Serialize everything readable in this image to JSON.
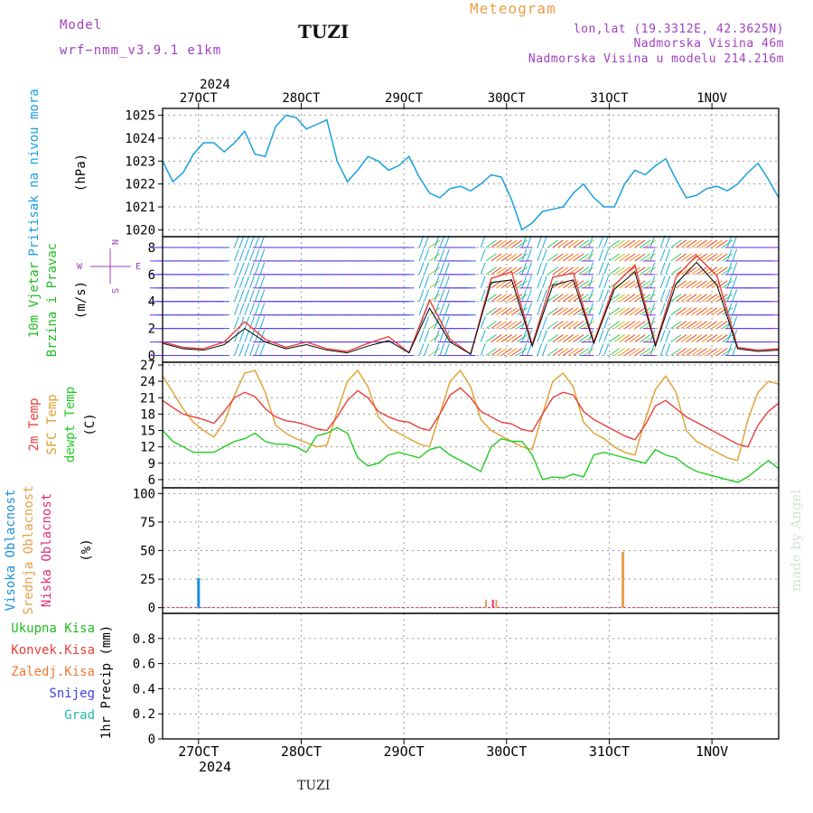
{
  "header": {
    "model_label": "Model",
    "model_name": "wrf−nmm_v3.9.1  e1km",
    "station": "TUZI",
    "title": "Meteogram",
    "lonlat": "lon,lat (19.3312E, 42.3625N)",
    "altitude": "Nadmorska Visina 46m",
    "model_altitude": "Nadmorska Visina u modelu 214.216m",
    "credit": "made by Angel",
    "footer_station": "TUZI"
  },
  "colors": {
    "pressure": "#1aa0e0",
    "temp2m": "#e8403a",
    "sfc_temp": "#e0a030",
    "dewpt": "#22cc22",
    "purple": "#a040c0",
    "orange": "#e8a04a",
    "blue": "#1a90e0",
    "green": "#22bb22",
    "red": "#e8403a"
  },
  "chart_data": [
    {
      "type": "line",
      "panel": "pressure",
      "ylabel_lines": [
        "Pritisak na nivou mora"
      ],
      "unit": "(hPa)",
      "top_axis": {
        "year": "2024",
        "date_labels": [
          "27OCT",
          "28OCT",
          "29OCT",
          "30OCT",
          "31OCT",
          "1NOV"
        ]
      },
      "ylim": [
        1019.7,
        1025.3
      ],
      "yticks": [
        1020,
        1021,
        1022,
        1023,
        1024,
        1025
      ],
      "grid": true,
      "x_hours": [
        0,
        3,
        6,
        9,
        12,
        15,
        18,
        21,
        24,
        27,
        30,
        33,
        36,
        39,
        42,
        45,
        48,
        51,
        54,
        57,
        60,
        63,
        66,
        69,
        72,
        75,
        78,
        81,
        84,
        87,
        90,
        93,
        96,
        99,
        102,
        105,
        108,
        111,
        114,
        117,
        120,
        123,
        126,
        129,
        132,
        135,
        138,
        141,
        144,
        147,
        150,
        153,
        156,
        159,
        162,
        165,
        168,
        171,
        174,
        177,
        180
      ],
      "series": [
        {
          "values": [
            1023.0,
            1022.1,
            1022.5,
            1023.3,
            1023.8,
            1023.8,
            1023.4,
            1023.8,
            1024.3,
            1023.3,
            1023.2,
            1024.5,
            1025.0,
            1024.9,
            1024.4,
            1024.6,
            1024.8,
            1023.0,
            1022.1,
            1022.6,
            1023.2,
            1023.0,
            1022.6,
            1022.8,
            1023.2,
            1022.3,
            1021.6,
            1021.4,
            1021.8,
            1021.9,
            1021.7,
            1022.0,
            1022.4,
            1022.3,
            1021.3,
            1020.0,
            1020.3,
            1020.8,
            1020.9,
            1021.0,
            1021.6,
            1022.0,
            1021.4,
            1021.0,
            1021.0,
            1022.0,
            1022.6,
            1022.4,
            1022.8,
            1023.1,
            1022.2,
            1021.4,
            1021.5,
            1021.8,
            1021.9,
            1021.7,
            1022.0,
            1022.5,
            1022.9,
            1022.2,
            1021.4
          ]
        }
      ]
    },
    {
      "type": "line",
      "panel": "wind",
      "ylabel_lines": [
        "10m Vjetar",
        "Brzina i Pravac"
      ],
      "unit": "(m/s)",
      "compass": {
        "n": "N",
        "s": "S",
        "e": "E",
        "w": "W"
      },
      "ylim": [
        -0.5,
        8.8
      ],
      "yticks": [
        0,
        2,
        4,
        6,
        8
      ],
      "grid": true,
      "x_hours": [
        0,
        6,
        12,
        18,
        24,
        30,
        36,
        42,
        48,
        54,
        60,
        66,
        72,
        78,
        84,
        90,
        96,
        102,
        108,
        114,
        120,
        126,
        132,
        138,
        144,
        150,
        156,
        162,
        168,
        174,
        180
      ],
      "series": [
        {
          "values": [
            1.0,
            0.6,
            0.5,
            1.0,
            2.5,
            1.2,
            0.6,
            1.0,
            0.5,
            0.3,
            0.9,
            1.4,
            0.2,
            4.1,
            1.2,
            0.1,
            5.7,
            6.2,
            0.8,
            5.8,
            6.1,
            1.0,
            5.2,
            6.7,
            0.8,
            5.8,
            7.4,
            5.9,
            0.6,
            0.4,
            0.5
          ]
        },
        {
          "values": [
            0.9,
            0.5,
            0.4,
            0.8,
            2.0,
            1.0,
            0.5,
            0.8,
            0.4,
            0.2,
            0.7,
            1.1,
            0.2,
            3.5,
            1.0,
            0.1,
            5.4,
            5.6,
            0.7,
            5.2,
            5.6,
            0.9,
            4.9,
            6.2,
            0.7,
            5.3,
            6.9,
            5.2,
            0.5,
            0.3,
            0.4
          ]
        }
      ]
    },
    {
      "type": "line",
      "panel": "temperature",
      "ylabel_lines": [
        "2m Temp",
        "SFC Temp",
        "dewpt Temp"
      ],
      "unit": "(C)",
      "ylim": [
        4.5,
        27.5
      ],
      "yticks": [
        6,
        9,
        12,
        15,
        18,
        21,
        24,
        27
      ],
      "grid": true,
      "x_hours": [
        0,
        3,
        6,
        9,
        12,
        15,
        18,
        21,
        24,
        27,
        30,
        33,
        36,
        39,
        42,
        45,
        48,
        51,
        54,
        57,
        60,
        63,
        66,
        69,
        72,
        75,
        78,
        81,
        84,
        87,
        90,
        93,
        96,
        99,
        102,
        105,
        108,
        111,
        114,
        117,
        120,
        123,
        126,
        129,
        132,
        135,
        138,
        141,
        144,
        147,
        150,
        153,
        156,
        159,
        162,
        165,
        168,
        171,
        174,
        177,
        180
      ],
      "series": [
        {
          "name": "2m Temp",
          "values": [
            20.5,
            19.2,
            18.0,
            17.5,
            17.0,
            16.3,
            18.5,
            21.0,
            22.0,
            21.2,
            19.0,
            17.5,
            16.8,
            16.5,
            16.0,
            15.3,
            15.0,
            17.5,
            20.5,
            22.3,
            21.0,
            18.5,
            17.5,
            16.8,
            16.5,
            15.5,
            15.0,
            18.0,
            21.5,
            22.8,
            21.0,
            18.5,
            17.5,
            16.5,
            16.2,
            15.2,
            14.8,
            18.0,
            21.0,
            22.0,
            21.5,
            18.5,
            17.0,
            16.0,
            15.0,
            14.0,
            13.3,
            16.0,
            19.5,
            20.5,
            19.0,
            17.5,
            16.5,
            15.5,
            14.5,
            13.5,
            12.5,
            12.0,
            16.0,
            18.5,
            20.0
          ]
        },
        {
          "name": "SFC Temp",
          "values": [
            25.0,
            22.0,
            19.0,
            16.5,
            15.0,
            13.8,
            16.5,
            21.5,
            25.5,
            26.0,
            22.0,
            16.0,
            14.5,
            13.5,
            12.8,
            12.0,
            12.3,
            18.5,
            24.0,
            26.0,
            23.0,
            17.5,
            15.5,
            14.5,
            13.5,
            12.5,
            12.0,
            18.0,
            24.0,
            26.0,
            23.0,
            17.0,
            15.0,
            14.0,
            13.0,
            12.0,
            11.5,
            18.0,
            24.0,
            25.5,
            23.0,
            16.5,
            14.5,
            13.5,
            12.0,
            11.0,
            10.5,
            17.0,
            22.5,
            25.0,
            22.0,
            15.0,
            13.0,
            12.0,
            11.0,
            10.0,
            9.5,
            17.0,
            22.0,
            24.0,
            23.5
          ]
        },
        {
          "name": "dewpt Temp",
          "values": [
            15.0,
            13.0,
            12.0,
            11.0,
            11.0,
            11.0,
            12.0,
            13.0,
            13.5,
            14.5,
            13.0,
            12.5,
            12.5,
            12.0,
            11.0,
            14.0,
            14.5,
            15.5,
            14.5,
            10.0,
            8.5,
            9.0,
            10.5,
            11.0,
            10.5,
            10.0,
            11.5,
            12.0,
            10.5,
            9.5,
            8.5,
            7.5,
            12.0,
            13.5,
            13.0,
            13.0,
            10.5,
            6.0,
            6.5,
            6.3,
            7.0,
            6.5,
            10.5,
            11.0,
            10.5,
            10.0,
            9.5,
            9.0,
            11.5,
            10.5,
            10.0,
            8.5,
            7.5,
            7.0,
            6.5,
            6.0,
            5.5,
            6.5,
            8.0,
            9.5,
            8.0
          ]
        }
      ]
    },
    {
      "type": "bar",
      "panel": "clouds",
      "ylabel_lines": [
        "Visoka Oblacnost",
        "Srednja Oblacnost",
        "Niska Oblacnost"
      ],
      "unit": "(%)",
      "ylim": [
        -5,
        105
      ],
      "yticks": [
        0,
        25,
        50,
        75,
        100
      ],
      "grid": true,
      "bars": [
        {
          "series": "Visoka Oblacnost",
          "hour": 10.5,
          "value": 26
        },
        {
          "series": "Srednja Oblacnost",
          "hour": 94.5,
          "value": 7
        },
        {
          "series": "Niska Oblacnost",
          "hour": 96.5,
          "value": 7
        },
        {
          "series": "Srednja Oblacnost",
          "hour": 97.5,
          "value": 7
        },
        {
          "series": "Srednja Oblacnost",
          "hour": 134.5,
          "value": 49
        }
      ]
    },
    {
      "type": "line",
      "panel": "precipitation",
      "ylabel_lines": [
        "1hr Precip (mm)"
      ],
      "legend": [
        "Ukupna Kisa",
        "Konvek.Kisa",
        "Zaledj.Kisa",
        "Snijeg",
        "Grad"
      ],
      "bottom_axis": {
        "year": "2024",
        "date_labels": [
          "27OCT",
          "28OCT",
          "29OCT",
          "30OCT",
          "31OCT",
          "1NOV"
        ]
      },
      "ylim": [
        0,
        1.0
      ],
      "yticks": [
        0,
        0.2,
        0.4,
        0.6,
        0.8
      ],
      "ytick_labels": [
        "0",
        "0.2",
        "0.4",
        "0.6",
        "0.8"
      ],
      "grid": true,
      "series": [
        {
          "name": "Ukupna Kisa",
          "values": []
        }
      ]
    }
  ]
}
